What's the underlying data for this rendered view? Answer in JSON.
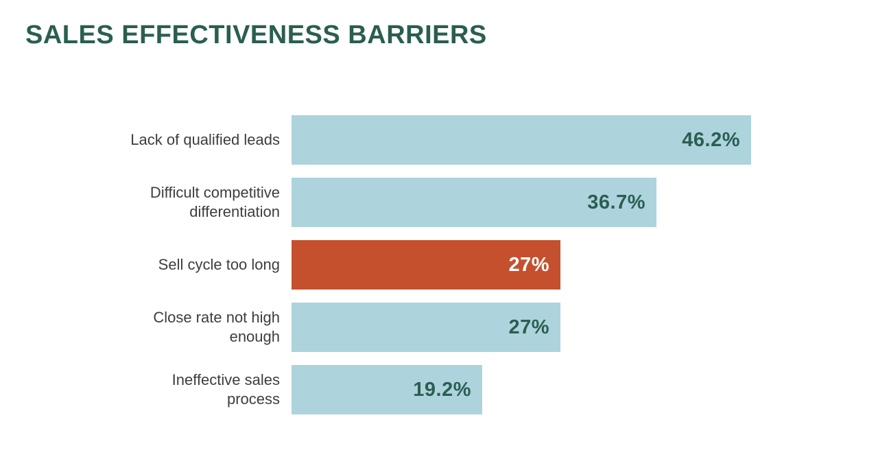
{
  "title": "SALES EFFECTIVENESS BARRIERS",
  "colors": {
    "background": "#ffffff",
    "title_text": "#2a5e51",
    "bar": "#add3dc",
    "highlight_bar": "#c5502e",
    "value_text": "#2a5e51",
    "highlight_value_text": "#ffffff",
    "label_text": "#3d3d3d"
  },
  "chart_data": {
    "type": "bar",
    "orientation": "horizontal",
    "title": "SALES EFFECTIVENESS BARRIERS",
    "categories": [
      "Lack of qualified leads",
      "Difficult competitive differentiation",
      "Sell cycle too long",
      "Close rate not high enough",
      "Ineffective sales process"
    ],
    "values": [
      46.2,
      36.7,
      27,
      27,
      19.2
    ],
    "data_labels": [
      "46.2%",
      "36.7%",
      "27%",
      "27%",
      "19.2%"
    ],
    "highlighted_index": 2,
    "xlabel": "",
    "ylabel": "",
    "xlim": [
      0,
      50
    ],
    "grid": false,
    "legend": false,
    "value_label_position": "inside-end"
  },
  "bars": [
    {
      "label": "Lack of qualified leads",
      "value": 46.2,
      "value_label": "46.2%",
      "highlighted": false
    },
    {
      "label": "Difficult competitive\ndifferentiation",
      "value": 36.7,
      "value_label": "36.7%",
      "highlighted": false
    },
    {
      "label": "Sell cycle too long",
      "value": 27,
      "value_label": "27%",
      "highlighted": true
    },
    {
      "label": "Close rate not high\nenough",
      "value": 27,
      "value_label": "27%",
      "highlighted": false
    },
    {
      "label": "Ineffective sales\nprocess",
      "value": 19.2,
      "value_label": "19.2%",
      "highlighted": false
    }
  ]
}
